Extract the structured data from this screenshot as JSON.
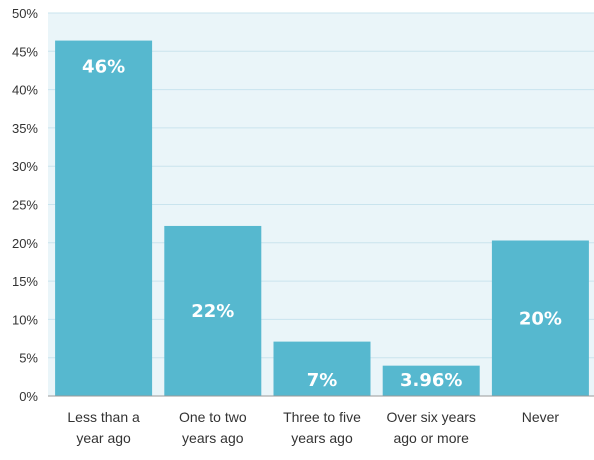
{
  "chart_data": {
    "type": "bar",
    "categories": [
      [
        "Less than a",
        "year ago"
      ],
      [
        "One to two",
        "years ago"
      ],
      [
        "Three to five",
        "years ago"
      ],
      [
        "Over six years",
        "ago or more"
      ],
      [
        "Never"
      ]
    ],
    "values": [
      46.4,
      22.2,
      7.1,
      3.96,
      20.3
    ],
    "data_labels": [
      "46%",
      "22%",
      "7%",
      "3.96%",
      "20%"
    ],
    "title": "",
    "xlabel": "",
    "ylabel": "",
    "ylim": [
      0,
      50
    ],
    "y_ticks": [
      0,
      5,
      10,
      15,
      20,
      25,
      30,
      35,
      40,
      45,
      50
    ],
    "y_tick_labels": [
      "0%",
      "5%",
      "10%",
      "15%",
      "20%",
      "25%",
      "30%",
      "35%",
      "40%",
      "45%",
      "50%"
    ],
    "grid": true,
    "legend": "none",
    "colors": {
      "bar": "#56b8cf",
      "plot_background": "#eaf5f9",
      "gridline": "#c9e4ee",
      "axis": "#9a9a9a",
      "label_inside": "#ffffff",
      "label_outside": "#6f6f6f"
    }
  }
}
